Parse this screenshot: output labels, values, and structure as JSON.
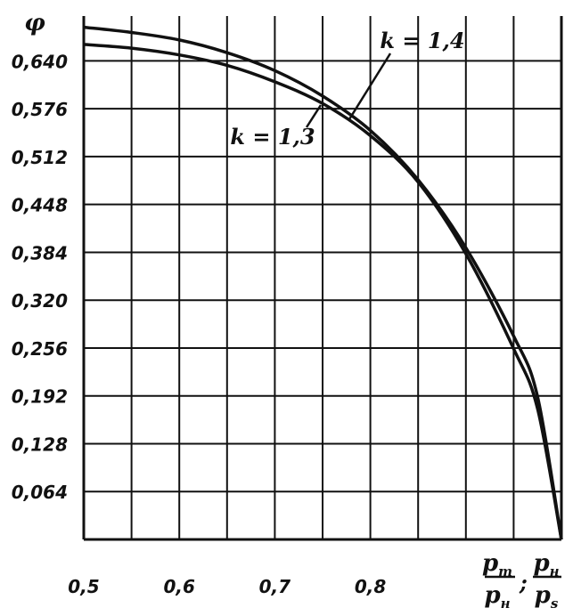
{
  "chart_data": {
    "type": "line",
    "ylabel": "φ",
    "x_ticks": [
      "0,5",
      "0,6",
      "0,7",
      "0,8"
    ],
    "y_ticks": [
      "0,640",
      "0,576",
      "0,512",
      "0,448",
      "0,384",
      "0,320",
      "0,256",
      "0,192",
      "0,128",
      "0,064"
    ],
    "xlim": [
      0.5,
      1.0
    ],
    "ylim": [
      0.0,
      0.7
    ],
    "grid": true,
    "xlabel": {
      "frac1": {
        "num": "p",
        "num_sub": "т",
        "den": "p",
        "den_sub": "н"
      },
      "separator": ";",
      "frac2": {
        "num": "p",
        "num_sub": "н",
        "den": "p",
        "den_sub": "s"
      }
    },
    "series": [
      {
        "name": "k = 1,4",
        "x": [
          0.5,
          0.55,
          0.6,
          0.65,
          0.7,
          0.75,
          0.8,
          0.85,
          0.9,
          0.95,
          0.975,
          1.0
        ],
        "y": [
          0.685,
          0.678,
          0.668,
          0.651,
          0.627,
          0.593,
          0.547,
          0.481,
          0.39,
          0.272,
          0.191,
          0.0
        ]
      },
      {
        "name": "k = 1,3",
        "x": [
          0.5,
          0.55,
          0.6,
          0.65,
          0.7,
          0.75,
          0.8,
          0.85,
          0.9,
          0.95,
          0.975,
          1.0
        ],
        "y": [
          0.662,
          0.657,
          0.648,
          0.634,
          0.612,
          0.583,
          0.54,
          0.478,
          0.382,
          0.255,
          0.175,
          0.0
        ]
      }
    ]
  }
}
